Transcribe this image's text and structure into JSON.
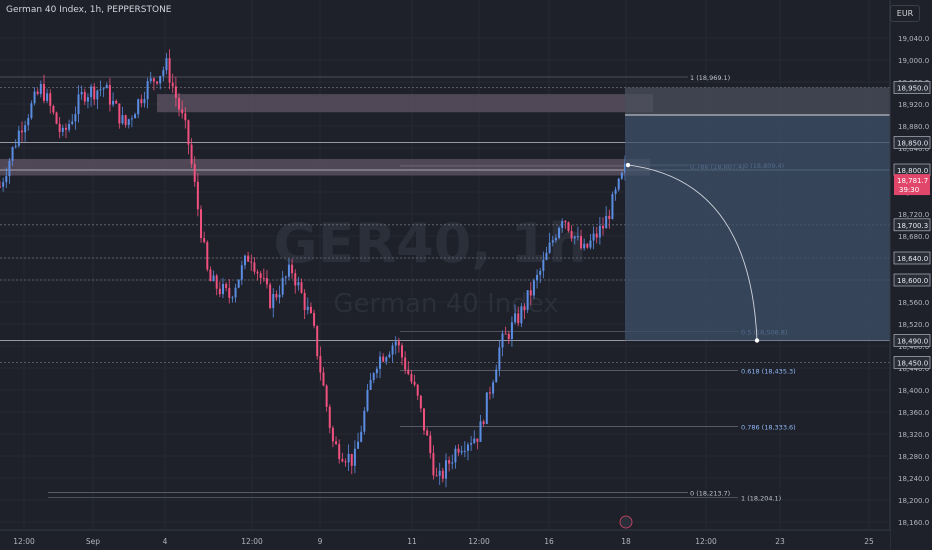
{
  "header": {
    "symbol_title": "German 40 Index, 1h, PEPPERSTONE",
    "currency_button": "EUR"
  },
  "watermark": {
    "symbol": "GER40, 1h",
    "name": "German 40 Index"
  },
  "colors": {
    "background": "#1e2129",
    "bull": "#5b8de3",
    "bear": "#f0517e",
    "zone": "#6e5f72",
    "projection_box": "#3d5068",
    "price_label_red": "#e0476b",
    "fib_blue": "#8fb8f8"
  },
  "chart_data": {
    "type": "candlestick",
    "timeframe": "1h",
    "y_axis": {
      "ticks": [
        "19,040.0",
        "19,000.0",
        "18,960.0",
        "18,920.0",
        "18,880.0",
        "18,840.0",
        "18,800.0",
        "18,760.0",
        "18,720.0",
        "18,680.0",
        "18,640.0",
        "18,600.0",
        "18,560.0",
        "18,520.0",
        "18,480.0",
        "18,440.0",
        "18,400.0",
        "18,360.0",
        "18,320.0",
        "18,280.0",
        "18,240.0",
        "18,200.0",
        "18,160.0"
      ],
      "range": [
        18150,
        19060
      ]
    },
    "x_axis": {
      "ticks": [
        "12:00",
        "Sep",
        "4",
        "12:00",
        "9",
        "11",
        "12:00",
        "16",
        "18",
        "12:00",
        "23",
        "25"
      ]
    },
    "price_path": [
      [
        18770,
        "-"
      ],
      [
        18880,
        "-"
      ],
      [
        18950,
        "-"
      ],
      [
        18860,
        "-"
      ],
      [
        18940,
        "-"
      ],
      [
        18950,
        "-"
      ],
      [
        18880,
        "-"
      ],
      [
        18950,
        "-"
      ],
      [
        18990,
        "-"
      ],
      [
        18860,
        "-"
      ],
      [
        18600,
        "-"
      ],
      [
        18570,
        "-"
      ],
      [
        18650,
        "-"
      ],
      [
        18560,
        "-"
      ],
      [
        18620,
        "-"
      ],
      [
        18520,
        "-"
      ],
      [
        18300,
        "-"
      ],
      [
        18270,
        "-"
      ],
      [
        18450,
        "-"
      ],
      [
        18490,
        "-"
      ],
      [
        18390,
        "-"
      ],
      [
        18230,
        "-"
      ],
      [
        18300,
        "-"
      ],
      [
        18320,
        "-"
      ],
      [
        18480,
        "-"
      ],
      [
        18540,
        "-"
      ],
      [
        18620,
        "-"
      ],
      [
        18720,
        "-"
      ],
      [
        18650,
        "-"
      ],
      [
        18700,
        "-"
      ],
      [
        18800,
        "-"
      ]
    ],
    "current_price": "18,781.7",
    "countdown": "39:30",
    "price_labels": [
      {
        "value": "18,950.0",
        "price": 18950
      },
      {
        "value": "18,850.0",
        "price": 18850
      },
      {
        "value": "18,800.0",
        "price": 18800
      },
      {
        "value": "18,700.3",
        "price": 18700.3
      },
      {
        "value": "18,640.0",
        "price": 18640
      },
      {
        "value": "18,600.0",
        "price": 18600
      },
      {
        "value": "18,490.0",
        "price": 18490
      },
      {
        "value": "18,450.0",
        "price": 18450
      }
    ],
    "fib_levels": [
      {
        "label": "1 (18,969.1)",
        "price": 18969.1
      },
      {
        "label": "0.786 (18,807.4)",
        "price": 18807.4
      },
      {
        "label": "0 (18,809.4)",
        "price": 18809.4
      },
      {
        "label": "0.5 (18,506.8)",
        "price": 18506.8
      },
      {
        "label": "0.618 (18,435.3)",
        "price": 18435.3
      },
      {
        "label": "0.786 (18,333.6)",
        "price": 18333.6
      },
      {
        "label": "0 (18,213.7)",
        "price": 18213.7
      },
      {
        "label": "1 (18,204.1)",
        "price": 18204.1
      }
    ],
    "supply_zones": [
      {
        "low": 18905,
        "high": 18938
      },
      {
        "low": 18790,
        "high": 18820
      }
    ],
    "horizontal_lines": [
      18950,
      18850,
      18800,
      18700.3,
      18640,
      18600,
      18490,
      18450
    ],
    "projection_target": 18490
  }
}
